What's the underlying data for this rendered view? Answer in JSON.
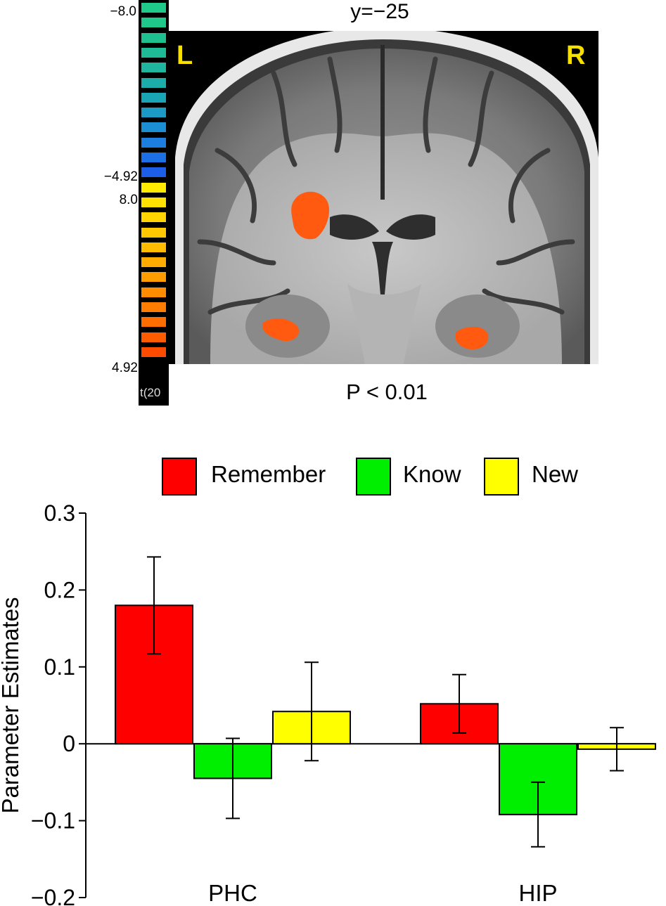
{
  "brain_figure": {
    "slice_label": "y=−25",
    "threshold_label": "P < 0.01",
    "hemisphere_left": "L",
    "hemisphere_right": "R",
    "colorbar": {
      "negative_max": "−8.0",
      "negative_min": "−4.92",
      "positive_max": "8.0",
      "positive_min": "4.92",
      "stat_label": "t(20",
      "negative_colors": [
        "#1fc98a",
        "#1fc98a",
        "#1fc08f",
        "#1fbb96",
        "#1fb59e",
        "#1cadaa",
        "#1aa5b6",
        "#1b9ac6",
        "#1c8fd4",
        "#1c7fe0",
        "#1d6fe6",
        "#1d5ee8"
      ],
      "positive_colors": [
        "#ffea00",
        "#ffe000",
        "#ffd400",
        "#ffc800",
        "#ffbb00",
        "#ffab00",
        "#ff9c00",
        "#ff8c00",
        "#ff7d00",
        "#ff6d00",
        "#ff5c00",
        "#ff4b00"
      ]
    },
    "highlight_color": "#ff5a10"
  },
  "chart_data": {
    "type": "bar",
    "title": "",
    "xlabel": "",
    "ylabel": "Parameter Estimates",
    "ylim": [
      -0.2,
      0.3
    ],
    "yticks": [
      0.3,
      0.2,
      0.1,
      0,
      -0.1,
      -0.2
    ],
    "ytick_labels": [
      "0.3",
      "0.2",
      "0.1",
      "0",
      "−0.1",
      "−0.2"
    ],
    "categories": [
      "PHC",
      "HIP"
    ],
    "legend_position": "top",
    "series": [
      {
        "name": "Remember",
        "color": "#ff0000",
        "values": [
          0.18,
          0.052
        ],
        "error": [
          0.063,
          0.038
        ]
      },
      {
        "name": "Know",
        "color": "#00ee00",
        "values": [
          -0.045,
          -0.092
        ],
        "error": [
          0.052,
          0.042
        ]
      },
      {
        "name": "New",
        "color": "#ffff00",
        "values": [
          0.042,
          -0.007
        ],
        "error": [
          0.064,
          0.028
        ]
      }
    ]
  }
}
